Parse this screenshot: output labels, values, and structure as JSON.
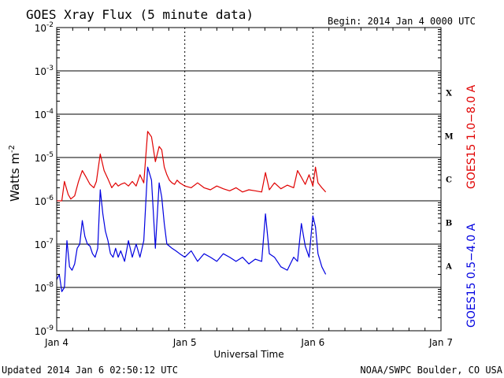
{
  "title": "GOES Xray Flux (5 minute data)",
  "begin_label": "Begin:  2014 Jan 4 0000 UTC",
  "updated_label": "Updated 2014 Jan  6 02:50:12 UTC",
  "source_label": "NOAA/SWPC Boulder, CO USA",
  "ylabel_main": "Watts m",
  "ylabel_sup": "-2",
  "xlabel": "Universal Time",
  "colors": {
    "long_channel": "#e00000",
    "short_channel": "#0000e0",
    "axis": "#000000"
  },
  "chart_data": {
    "type": "line",
    "title": "GOES Xray Flux (5 minute data)",
    "xlabel": "Universal Time",
    "ylabel": "Watts m-2",
    "yscale": "log",
    "ylim": [
      1e-09,
      0.01
    ],
    "xlim": [
      0,
      3
    ],
    "x_unit": "days since 2014 Jan 4 0000 UTC",
    "x_ticks": [
      {
        "x": 0,
        "label": "Jan 4"
      },
      {
        "x": 1,
        "label": "Jan 5"
      },
      {
        "x": 2,
        "label": "Jan 6"
      },
      {
        "x": 3,
        "label": "Jan 7"
      }
    ],
    "y_ticks": [
      {
        "exp": -2,
        "base": "10",
        "sup": "-2"
      },
      {
        "exp": -3,
        "base": "10",
        "sup": "-3"
      },
      {
        "exp": -4,
        "base": "10",
        "sup": "-4"
      },
      {
        "exp": -5,
        "base": "10",
        "sup": "-5"
      },
      {
        "exp": -6,
        "base": "10",
        "sup": "-6"
      },
      {
        "exp": -7,
        "base": "10",
        "sup": "-7"
      },
      {
        "exp": -8,
        "base": "10",
        "sup": "-8"
      },
      {
        "exp": -9,
        "base": "10",
        "sup": "-9"
      }
    ],
    "flare_classes": [
      {
        "label": "X",
        "exp": -3.5
      },
      {
        "label": "M",
        "exp": -4.5
      },
      {
        "label": "C",
        "exp": -5.5
      },
      {
        "label": "B",
        "exp": -6.5
      },
      {
        "label": "A",
        "exp": -7.5
      }
    ],
    "series": [
      {
        "name": "GOES15 1.0−8.0 A",
        "color": "#e00000",
        "x": [
          0,
          0.04,
          0.06,
          0.09,
          0.11,
          0.14,
          0.17,
          0.2,
          0.23,
          0.26,
          0.29,
          0.31,
          0.34,
          0.37,
          0.4,
          0.43,
          0.46,
          0.48,
          0.5,
          0.53,
          0.56,
          0.59,
          0.62,
          0.65,
          0.68,
          0.71,
          0.74,
          0.77,
          0.8,
          0.82,
          0.84,
          0.86,
          0.88,
          0.9,
          0.92,
          0.94,
          0.96,
          0.98,
          1.0,
          1.05,
          1.1,
          1.15,
          1.2,
          1.25,
          1.3,
          1.35,
          1.4,
          1.45,
          1.5,
          1.55,
          1.6,
          1.63,
          1.66,
          1.7,
          1.75,
          1.8,
          1.85,
          1.88,
          1.91,
          1.94,
          1.97,
          2.0,
          2.02,
          2.04,
          2.07,
          2.1
        ],
        "y": [
          1e-06,
          1e-06,
          2.8e-06,
          1.4e-06,
          1.1e-06,
          1.3e-06,
          2.8e-06,
          5e-06,
          3.5e-06,
          2.4e-06,
          2e-06,
          2.8e-06,
          1.2e-05,
          5e-06,
          3.2e-06,
          2e-06,
          2.6e-06,
          2.2e-06,
          2.4e-06,
          2.6e-06,
          2.2e-06,
          2.8e-06,
          2.2e-06,
          4e-06,
          2.6e-06,
          4e-05,
          3e-05,
          8e-06,
          1.8e-05,
          1.5e-05,
          6e-06,
          4e-06,
          3e-06,
          2.6e-06,
          2.4e-06,
          3e-06,
          2.6e-06,
          2.4e-06,
          2.2e-06,
          2e-06,
          2.6e-06,
          2e-06,
          1.8e-06,
          2.2e-06,
          1.9e-06,
          1.7e-06,
          2e-06,
          1.6e-06,
          1.8e-06,
          1.7e-06,
          1.6e-06,
          4.5e-06,
          1.8e-06,
          2.6e-06,
          1.9e-06,
          2.3e-06,
          2e-06,
          5e-06,
          3.5e-06,
          2.4e-06,
          4e-06,
          2.2e-06,
          6e-06,
          2.6e-06,
          2e-06,
          1.6e-06
        ]
      },
      {
        "name": "GOES15 0.5−4.0 A",
        "color": "#0000e0",
        "x": [
          0,
          0.02,
          0.04,
          0.06,
          0.08,
          0.1,
          0.12,
          0.14,
          0.16,
          0.18,
          0.2,
          0.22,
          0.24,
          0.26,
          0.28,
          0.3,
          0.32,
          0.34,
          0.36,
          0.38,
          0.4,
          0.42,
          0.44,
          0.46,
          0.48,
          0.5,
          0.53,
          0.56,
          0.59,
          0.62,
          0.65,
          0.68,
          0.71,
          0.74,
          0.77,
          0.8,
          0.82,
          0.84,
          0.86,
          0.88,
          0.9,
          0.93,
          0.96,
          1.0,
          1.05,
          1.1,
          1.15,
          1.2,
          1.25,
          1.3,
          1.35,
          1.4,
          1.45,
          1.5,
          1.55,
          1.6,
          1.63,
          1.66,
          1.7,
          1.75,
          1.8,
          1.85,
          1.88,
          1.91,
          1.94,
          1.97,
          2.0,
          2.02,
          2.04,
          2.07,
          2.1
        ],
        "y": [
          1.5e-08,
          2e-08,
          8e-09,
          1e-08,
          1.2e-07,
          3e-08,
          2.5e-08,
          3.5e-08,
          8e-08,
          1e-07,
          3.5e-07,
          1.5e-07,
          1e-07,
          9e-08,
          6e-08,
          5e-08,
          8e-08,
          1.8e-06,
          5e-07,
          2e-07,
          1.2e-07,
          6e-08,
          5e-08,
          8e-08,
          5e-08,
          7e-08,
          4e-08,
          1.2e-07,
          5e-08,
          1e-07,
          5e-08,
          1.2e-07,
          6e-06,
          3e-06,
          8e-08,
          2.6e-06,
          1.2e-06,
          3e-07,
          1e-07,
          9e-08,
          8e-08,
          7e-08,
          6e-08,
          5e-08,
          7e-08,
          4e-08,
          6e-08,
          5e-08,
          4e-08,
          6e-08,
          5e-08,
          4e-08,
          5e-08,
          3.5e-08,
          4.5e-08,
          4e-08,
          5e-07,
          6e-08,
          5e-08,
          3e-08,
          2.5e-08,
          5e-08,
          4e-08,
          3e-07,
          9e-08,
          5e-08,
          4.5e-07,
          2.5e-07,
          6e-08,
          3e-08,
          2e-08
        ]
      }
    ],
    "grid": "horizontal at each decade; dotted vertical at each day"
  }
}
